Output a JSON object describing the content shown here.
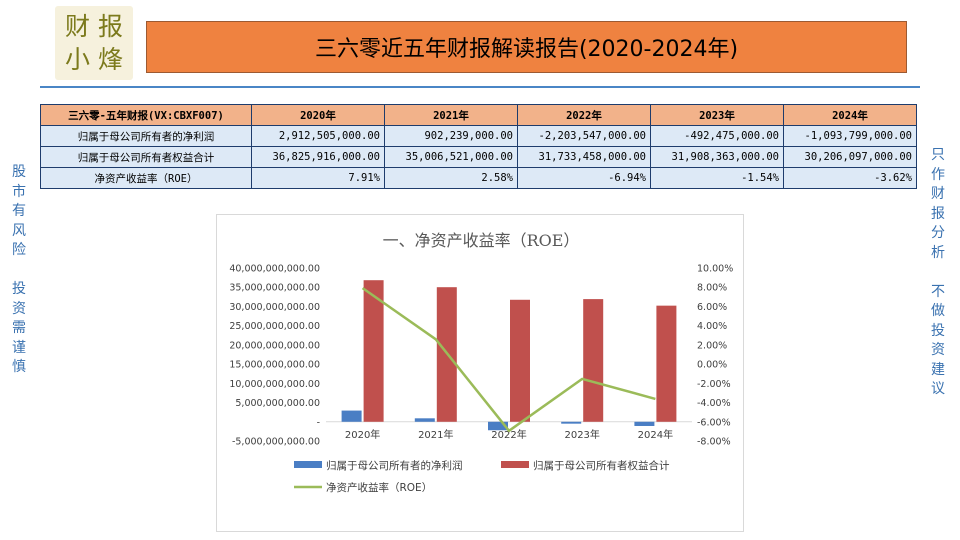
{
  "logo": {
    "chars": [
      "财",
      "报",
      "小",
      "烽"
    ]
  },
  "header": {
    "title": "三六零近五年财报解读报告(2020-2024年)"
  },
  "table": {
    "corner": "三六零-五年财报(VX:CBXF007)",
    "years": [
      "2020年",
      "2021年",
      "2022年",
      "2023年",
      "2024年"
    ],
    "rows": [
      {
        "label": "归属于母公司所有者的净利润",
        "values": [
          "2,912,505,000.00",
          "902,239,000.00",
          "-2,203,547,000.00",
          "-492,475,000.00",
          "-1,093,799,000.00"
        ]
      },
      {
        "label": "归属于母公司所有者权益合计",
        "values": [
          "36,825,916,000.00",
          "35,006,521,000.00",
          "31,733,458,000.00",
          "31,908,363,000.00",
          "30,206,097,000.00"
        ]
      },
      {
        "label": "净资产收益率（ROE）",
        "values": [
          "7.91%",
          "2.58%",
          "-6.94%",
          "-1.54%",
          "-3.62%"
        ]
      }
    ]
  },
  "side_left": [
    "股",
    "市",
    "有",
    "风",
    "险",
    "",
    "投",
    "资",
    "需",
    "谨",
    "慎"
  ],
  "side_right": [
    "只",
    "作",
    "财",
    "报",
    "分",
    "析",
    "",
    "不",
    "做",
    "投",
    "资",
    "建",
    "议"
  ],
  "colors": {
    "net_profit": "#4a7ec4",
    "equity": "#c0504d",
    "roe": "#9bbb59",
    "title_bg": "#ef8240",
    "header_bg": "#f2b28a",
    "cell_bg": "#dde9f6"
  },
  "chart_data": {
    "type": "bar+line",
    "title": "一、净资产收益率（ROE）",
    "categories": [
      "2020年",
      "2021年",
      "2022年",
      "2023年",
      "2024年"
    ],
    "series": [
      {
        "name": "归属于母公司所有者的净利润",
        "type": "bar",
        "axis": "left",
        "values": [
          2912505000,
          902239000,
          -2203547000,
          -492475000,
          -1093799000
        ]
      },
      {
        "name": "归属于母公司所有者权益合计",
        "type": "bar",
        "axis": "left",
        "values": [
          36825916000,
          35006521000,
          31733458000,
          31908363000,
          30206097000
        ]
      },
      {
        "name": "净资产收益率（ROE）",
        "type": "line",
        "axis": "right",
        "values": [
          7.91,
          2.58,
          -6.94,
          -1.54,
          -3.62
        ]
      }
    ],
    "y_left": {
      "min": -5000000000,
      "max": 40000000000,
      "step": 5000000000,
      "tick_labels": [
        "-5,000,000,000.00",
        "-",
        "5,000,000,000.00",
        "10,000,000,000.00",
        "15,000,000,000.00",
        "20,000,000,000.00",
        "25,000,000,000.00",
        "30,000,000,000.00",
        "35,000,000,000.00",
        "40,000,000,000.00"
      ]
    },
    "y_right": {
      "min": -8,
      "max": 10,
      "step": 2,
      "tick_labels": [
        "-8.00%",
        "-6.00%",
        "-4.00%",
        "-2.00%",
        "0.00%",
        "2.00%",
        "4.00%",
        "6.00%",
        "8.00%",
        "10.00%"
      ]
    },
    "legend": "bottom"
  }
}
